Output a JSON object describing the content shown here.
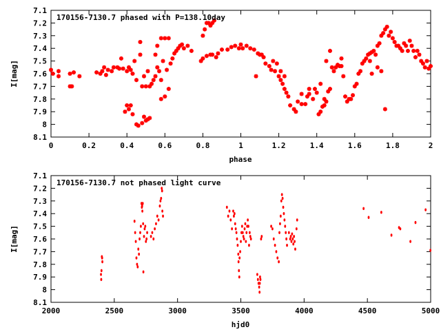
{
  "colors": {
    "marker": "#ff0000",
    "axis": "#000000",
    "background": "#ffffff"
  },
  "chart_data": [
    {
      "type": "scatter",
      "title": "170156-7130.7 phased with P=138.10day",
      "xlabel": "phase",
      "ylabel": "I[mag]",
      "xlim": [
        0,
        2
      ],
      "ylim": [
        7.1,
        8.1
      ],
      "y_inverted": true,
      "grid": false,
      "marker": "star",
      "x_ticks": [
        "0",
        "0.2",
        "0.4",
        "0.6",
        "0.8",
        "1",
        "1.2",
        "1.4",
        "1.6",
        "1.8",
        "2"
      ],
      "y_ticks": [
        "7.1",
        "7.2",
        "7.3",
        "7.4",
        "7.5",
        "7.6",
        "7.7",
        "7.8",
        "7.9",
        "8",
        "8.1"
      ],
      "points": [
        [
          0.0,
          7.57
        ],
        [
          0.01,
          7.6
        ],
        [
          0.04,
          7.58
        ],
        [
          0.04,
          7.62
        ],
        [
          0.1,
          7.6
        ],
        [
          0.1,
          7.7
        ],
        [
          0.11,
          7.7
        ],
        [
          0.12,
          7.59
        ],
        [
          0.15,
          7.62
        ],
        [
          0.24,
          7.59
        ],
        [
          0.26,
          7.6
        ],
        [
          0.27,
          7.58
        ],
        [
          0.28,
          7.55
        ],
        [
          0.29,
          7.61
        ],
        [
          0.3,
          7.57
        ],
        [
          0.32,
          7.58
        ],
        [
          0.33,
          7.55
        ],
        [
          0.35,
          7.55
        ],
        [
          0.36,
          7.56
        ],
        [
          0.37,
          7.48
        ],
        [
          0.38,
          7.56
        ],
        [
          0.4,
          7.58
        ],
        [
          0.41,
          7.55
        ],
        [
          0.42,
          7.57
        ],
        [
          0.43,
          7.6
        ],
        [
          0.44,
          7.5
        ],
        [
          0.45,
          7.65
        ],
        [
          0.47,
          7.45
        ],
        [
          0.48,
          7.7
        ],
        [
          0.49,
          7.62
        ],
        [
          0.5,
          7.7
        ],
        [
          0.51,
          7.58
        ],
        [
          0.52,
          7.7
        ],
        [
          0.53,
          7.68
        ],
        [
          0.54,
          7.65
        ],
        [
          0.55,
          7.62
        ],
        [
          0.56,
          7.55
        ],
        [
          0.57,
          7.58
        ],
        [
          0.58,
          7.65
        ],
        [
          0.58,
          7.8
        ],
        [
          0.59,
          7.5
        ],
        [
          0.6,
          7.78
        ],
        [
          0.61,
          7.57
        ],
        [
          0.62,
          7.72
        ],
        [
          0.63,
          7.52
        ],
        [
          0.64,
          7.48
        ],
        [
          0.65,
          7.44
        ],
        [
          0.66,
          7.42
        ],
        [
          0.67,
          7.4
        ],
        [
          0.68,
          7.38
        ],
        [
          0.69,
          7.37
        ],
        [
          0.7,
          7.4
        ],
        [
          0.72,
          7.38
        ],
        [
          0.74,
          7.42
        ],
        [
          0.6,
          7.32
        ],
        [
          0.62,
          7.32
        ],
        [
          0.58,
          7.32
        ],
        [
          0.56,
          7.38
        ],
        [
          0.55,
          7.45
        ],
        [
          0.39,
          7.9
        ],
        [
          0.4,
          7.85
        ],
        [
          0.41,
          7.88
        ],
        [
          0.42,
          7.85
        ],
        [
          0.43,
          7.92
        ],
        [
          0.45,
          8.0
        ],
        [
          0.46,
          8.01
        ],
        [
          0.48,
          7.99
        ],
        [
          0.49,
          7.94
        ],
        [
          0.5,
          7.97
        ],
        [
          0.51,
          7.96
        ],
        [
          0.52,
          7.95
        ],
        [
          0.47,
          7.35
        ],
        [
          0.79,
          7.5
        ],
        [
          0.8,
          7.3
        ],
        [
          0.81,
          7.25
        ],
        [
          0.82,
          7.2
        ],
        [
          0.83,
          7.2
        ],
        [
          0.84,
          7.22
        ],
        [
          0.85,
          7.2
        ],
        [
          0.86,
          7.18
        ],
        [
          0.87,
          7.47
        ],
        [
          0.8,
          7.48
        ],
        [
          0.82,
          7.46
        ],
        [
          0.84,
          7.45
        ],
        [
          0.85,
          7.45
        ],
        [
          0.88,
          7.44
        ],
        [
          0.9,
          7.41
        ],
        [
          0.93,
          7.41
        ],
        [
          0.95,
          7.39
        ],
        [
          0.97,
          7.38
        ],
        [
          0.99,
          7.4
        ],
        [
          1.0,
          7.37
        ],
        [
          1.01,
          7.4
        ],
        [
          1.03,
          7.38
        ],
        [
          1.05,
          7.4
        ],
        [
          1.07,
          7.41
        ],
        [
          1.09,
          7.44
        ],
        [
          1.1,
          7.45
        ],
        [
          1.12,
          7.47
        ],
        [
          1.13,
          7.52
        ],
        [
          1.15,
          7.54
        ],
        [
          1.16,
          7.57
        ],
        [
          1.17,
          7.5
        ],
        [
          1.18,
          7.58
        ],
        [
          1.2,
          7.62
        ],
        [
          1.21,
          7.65
        ],
        [
          1.22,
          7.68
        ],
        [
          1.23,
          7.72
        ],
        [
          1.24,
          7.75
        ],
        [
          1.25,
          7.78
        ],
        [
          1.26,
          7.85
        ],
        [
          1.28,
          7.88
        ],
        [
          1.29,
          7.9
        ],
        [
          1.3,
          7.82
        ],
        [
          1.32,
          7.84
        ],
        [
          1.34,
          7.84
        ],
        [
          1.35,
          7.78
        ],
        [
          1.36,
          7.76
        ],
        [
          1.38,
          7.8
        ],
        [
          1.39,
          7.72
        ],
        [
          1.4,
          7.75
        ],
        [
          1.41,
          7.92
        ],
        [
          1.42,
          7.9
        ],
        [
          1.43,
          7.86
        ],
        [
          1.44,
          7.85
        ],
        [
          1.45,
          7.82
        ],
        [
          1.46,
          7.74
        ],
        [
          1.47,
          7.72
        ],
        [
          1.48,
          7.55
        ],
        [
          1.49,
          7.58
        ],
        [
          1.5,
          7.55
        ],
        [
          1.51,
          7.53
        ],
        [
          1.52,
          7.54
        ],
        [
          1.53,
          7.54
        ],
        [
          1.54,
          7.62
        ],
        [
          1.55,
          7.78
        ],
        [
          1.56,
          7.82
        ],
        [
          1.57,
          7.8
        ],
        [
          1.58,
          7.8
        ],
        [
          1.59,
          7.77
        ],
        [
          1.6,
          7.7
        ],
        [
          1.61,
          7.68
        ],
        [
          1.62,
          7.6
        ],
        [
          1.63,
          7.58
        ],
        [
          1.64,
          7.52
        ],
        [
          1.65,
          7.5
        ],
        [
          1.66,
          7.48
        ],
        [
          1.67,
          7.45
        ],
        [
          1.68,
          7.44
        ],
        [
          1.69,
          7.43
        ],
        [
          1.7,
          7.42
        ],
        [
          1.71,
          7.45
        ],
        [
          1.72,
          7.38
        ],
        [
          1.73,
          7.36
        ],
        [
          1.74,
          7.3
        ],
        [
          1.75,
          7.28
        ],
        [
          1.76,
          7.25
        ],
        [
          1.77,
          7.23
        ],
        [
          1.78,
          7.3
        ],
        [
          1.79,
          7.27
        ],
        [
          1.8,
          7.32
        ],
        [
          1.81,
          7.35
        ],
        [
          1.82,
          7.38
        ],
        [
          1.83,
          7.38
        ],
        [
          1.84,
          7.4
        ],
        [
          1.85,
          7.42
        ],
        [
          1.86,
          7.36
        ],
        [
          1.87,
          7.38
        ],
        [
          1.88,
          7.42
        ],
        [
          1.89,
          7.34
        ],
        [
          1.9,
          7.38
        ],
        [
          1.91,
          7.42
        ],
        [
          1.92,
          7.47
        ],
        [
          1.93,
          7.42
        ],
        [
          1.94,
          7.45
        ],
        [
          1.95,
          7.5
        ],
        [
          1.96,
          7.52
        ],
        [
          1.97,
          7.55
        ],
        [
          1.98,
          7.5
        ],
        [
          1.99,
          7.56
        ],
        [
          2.0,
          7.54
        ],
        [
          1.72,
          7.55
        ],
        [
          1.74,
          7.58
        ],
        [
          1.76,
          7.88
        ],
        [
          1.69,
          7.6
        ],
        [
          1.68,
          7.5
        ],
        [
          1.08,
          7.62
        ],
        [
          1.11,
          7.45
        ],
        [
          1.19,
          7.52
        ],
        [
          1.21,
          7.58
        ],
        [
          1.23,
          7.62
        ],
        [
          1.42,
          7.68
        ],
        [
          1.45,
          7.5
        ],
        [
          1.47,
          7.42
        ],
        [
          1.53,
          7.48
        ],
        [
          1.44,
          7.8
        ],
        [
          1.32,
          7.76
        ],
        [
          1.36,
          7.72
        ]
      ]
    },
    {
      "type": "scatter",
      "title": "170156-7130.7 not phased light curve",
      "xlabel": "hjd0",
      "ylabel": "I[mag]",
      "xlim": [
        2000,
        5000
      ],
      "ylim": [
        7.1,
        8.1
      ],
      "y_inverted": true,
      "grid": false,
      "marker": "dot",
      "x_ticks": [
        "2000",
        "2500",
        "3000",
        "3500",
        "4000",
        "4500",
        "5000"
      ],
      "y_ticks": [
        "7.1",
        "7.2",
        "7.3",
        "7.4",
        "7.5",
        "7.6",
        "7.7",
        "7.8",
        "7.9",
        "8",
        "8.1"
      ],
      "points": [
        [
          2395,
          7.88
        ],
        [
          2397,
          7.92
        ],
        [
          2399,
          7.85
        ],
        [
          2402,
          7.74
        ],
        [
          2404,
          7.75
        ],
        [
          2406,
          7.78
        ],
        [
          2660,
          7.46
        ],
        [
          2665,
          7.55
        ],
        [
          2670,
          7.62
        ],
        [
          2675,
          7.75
        ],
        [
          2680,
          7.8
        ],
        [
          2685,
          7.82
        ],
        [
          2690,
          7.68
        ],
        [
          2695,
          7.72
        ],
        [
          2700,
          7.6
        ],
        [
          2705,
          7.55
        ],
        [
          2710,
          7.5
        ],
        [
          2715,
          7.32
        ],
        [
          2718,
          7.35
        ],
        [
          2720,
          7.34
        ],
        [
          2722,
          7.38
        ],
        [
          2725,
          7.32
        ],
        [
          2728,
          7.48
        ],
        [
          2730,
          7.86
        ],
        [
          2735,
          7.58
        ],
        [
          2740,
          7.52
        ],
        [
          2745,
          7.5
        ],
        [
          2750,
          7.62
        ],
        [
          2755,
          7.6
        ],
        [
          2760,
          7.55
        ],
        [
          2790,
          7.58
        ],
        [
          2800,
          7.55
        ],
        [
          2810,
          7.6
        ],
        [
          2820,
          7.52
        ],
        [
          2830,
          7.48
        ],
        [
          2840,
          7.42
        ],
        [
          2850,
          7.45
        ],
        [
          2860,
          7.34
        ],
        [
          2865,
          7.3
        ],
        [
          2870,
          7.28
        ],
        [
          2875,
          7.2
        ],
        [
          2878,
          7.22
        ],
        [
          2880,
          7.38
        ],
        [
          2885,
          7.42
        ],
        [
          3390,
          7.35
        ],
        [
          3400,
          7.42
        ],
        [
          3410,
          7.38
        ],
        [
          3420,
          7.45
        ],
        [
          3430,
          7.52
        ],
        [
          3440,
          7.38
        ],
        [
          3445,
          7.42
        ],
        [
          3450,
          7.4
        ],
        [
          3455,
          7.48
        ],
        [
          3460,
          7.52
        ],
        [
          3465,
          7.55
        ],
        [
          3470,
          7.6
        ],
        [
          3475,
          7.65
        ],
        [
          3480,
          7.72
        ],
        [
          3482,
          7.78
        ],
        [
          3485,
          7.85
        ],
        [
          3488,
          7.9
        ],
        [
          3490,
          7.75
        ],
        [
          3495,
          7.7
        ],
        [
          3500,
          7.62
        ],
        [
          3505,
          7.55
        ],
        [
          3510,
          7.5
        ],
        [
          3515,
          7.55
        ],
        [
          3520,
          7.58
        ],
        [
          3525,
          7.6
        ],
        [
          3530,
          7.52
        ],
        [
          3535,
          7.48
        ],
        [
          3540,
          7.62
        ],
        [
          3545,
          7.55
        ],
        [
          3550,
          7.5
        ],
        [
          3555,
          7.45
        ],
        [
          3560,
          7.5
        ],
        [
          3565,
          7.65
        ],
        [
          3570,
          7.55
        ],
        [
          3575,
          7.58
        ],
        [
          3580,
          7.6
        ],
        [
          3630,
          7.88
        ],
        [
          3635,
          7.92
        ],
        [
          3640,
          7.95
        ],
        [
          3645,
          7.98
        ],
        [
          3648,
          8.02
        ],
        [
          3650,
          7.95
        ],
        [
          3652,
          7.9
        ],
        [
          3655,
          7.92
        ],
        [
          3660,
          7.6
        ],
        [
          3665,
          7.58
        ],
        [
          3740,
          7.5
        ],
        [
          3750,
          7.52
        ],
        [
          3760,
          7.6
        ],
        [
          3770,
          7.65
        ],
        [
          3780,
          7.7
        ],
        [
          3790,
          7.75
        ],
        [
          3800,
          7.78
        ],
        [
          3805,
          7.55
        ],
        [
          3810,
          7.48
        ],
        [
          3815,
          7.42
        ],
        [
          3820,
          7.3
        ],
        [
          3825,
          7.25
        ],
        [
          3830,
          7.28
        ],
        [
          3835,
          7.35
        ],
        [
          3840,
          7.4
        ],
        [
          3845,
          7.45
        ],
        [
          3850,
          7.5
        ],
        [
          3855,
          7.55
        ],
        [
          3860,
          7.6
        ],
        [
          3865,
          7.65
        ],
        [
          3880,
          7.55
        ],
        [
          3890,
          7.6
        ],
        [
          3895,
          7.58
        ],
        [
          3900,
          7.62
        ],
        [
          3905,
          7.56
        ],
        [
          3910,
          7.6
        ],
        [
          3915,
          7.64
        ],
        [
          3920,
          7.58
        ],
        [
          3925,
          7.62
        ],
        [
          3930,
          7.68
        ],
        [
          3940,
          7.52
        ],
        [
          3945,
          7.45
        ],
        [
          4470,
          7.36
        ],
        [
          4510,
          7.43
        ],
        [
          4610,
          7.39
        ],
        [
          4690,
          7.57
        ],
        [
          4750,
          7.51
        ],
        [
          4760,
          7.52
        ],
        [
          4840,
          7.62
        ],
        [
          4880,
          7.47
        ],
        [
          4960,
          7.37
        ],
        [
          4998,
          7.69
        ]
      ]
    }
  ]
}
